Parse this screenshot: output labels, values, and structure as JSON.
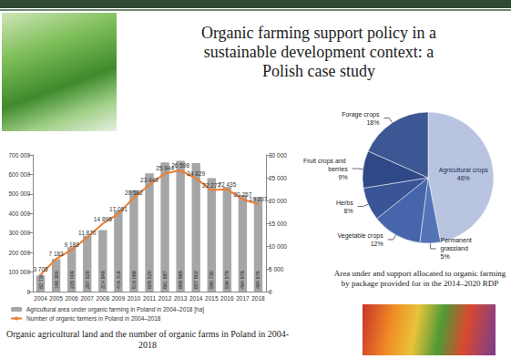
{
  "title": "Organic farming support policy in a sustainable development context: a Polish case study",
  "chart_data": [
    {
      "type": "bar",
      "title": "Organic agricultural land and the number of organic farms in Poland in 2004-2018",
      "categories": [
        "2004",
        "2005",
        "2006",
        "2007",
        "2008",
        "2009",
        "2010",
        "2011",
        "2012",
        "2013",
        "2014",
        "2015",
        "2016",
        "2017",
        "2018"
      ],
      "series": [
        {
          "name": "Agricultural area under organic farming in Poland in 2004–2018 [ha]",
          "type": "bar",
          "color": "#a6a6a6",
          "values": [
            82730,
            166300,
            228009,
            287529,
            314848,
            416316,
            519068,
            605520,
            661687,
            669969,
            657902,
            580730,
            536579,
            494979,
            484676
          ],
          "value_labels": [
            "82 730",
            "166 300",
            "228 009",
            "287 529",
            "314 848",
            "416 316",
            "519 068",
            "605 520",
            "661 687",
            "669 969",
            "657 902",
            "580 730",
            "536 579",
            "494 979",
            "484 676"
          ]
        },
        {
          "name": "Number of organic farmers in Poland in 2004–2018",
          "type": "line",
          "axis": "y2",
          "color": "#ed7d31",
          "marker": "none",
          "values": [
            3705,
            7183,
            9189,
            11870,
            14896,
            17091,
            20582,
            23449,
            25944,
            26598,
            24829,
            22277,
            22435,
            20257,
            19207
          ],
          "value_labels": [
            "3 705",
            "7 183",
            "9 189",
            "11 870",
            "14 896",
            "17 091",
            "20 582",
            "23 449",
            "25 944",
            "26 598",
            "24 829",
            "22 277",
            "22 435",
            "20 257",
            "19 207"
          ]
        }
      ],
      "ylim": [
        0,
        700000
      ],
      "yticks": [
        0,
        {
          "value": 100000,
          "label": "100 000"
        },
        {
          "value": 200000,
          "label": "200 000"
        },
        {
          "value": 300000,
          "label": "300 000"
        },
        {
          "value": 400000,
          "label": "400 000"
        },
        {
          "value": 500000,
          "label": "500 000"
        },
        {
          "value": 600000,
          "label": "600 000"
        },
        {
          "value": 700000,
          "label": "700 000"
        }
      ],
      "y2lim": [
        0,
        30000
      ],
      "y2ticks": [
        0,
        {
          "value": 5000,
          "label": "5 000"
        },
        {
          "value": 10000,
          "label": "10 000"
        },
        {
          "value": 15000,
          "label": "15 000"
        },
        {
          "value": 20000,
          "label": "20 000"
        },
        {
          "value": 25000,
          "label": "25 000"
        },
        {
          "value": 30000,
          "label": "30 000"
        }
      ],
      "grid": false,
      "legend": "bottom",
      "data_labels": true
    },
    {
      "type": "pie",
      "title": "Area under and support allocated to organic farming by package provided for in the 2014–2020 RDP",
      "categories": [
        "Agricultural crops",
        "Permanent grassland",
        "Vegetable crops",
        "Herbs",
        "Fruit crops and berries",
        "Forage crops"
      ],
      "values": [
        46,
        5,
        12,
        8,
        9,
        18
      ],
      "value_labels": [
        "46%",
        "5%",
        "12%",
        "8%",
        "9%",
        "18%"
      ],
      "colors": [
        "#b8c4e0",
        "#5474b8",
        "#4665aa",
        "#3a5597",
        "#2f4886",
        "#3d5794"
      ],
      "data_labels": true
    }
  ]
}
